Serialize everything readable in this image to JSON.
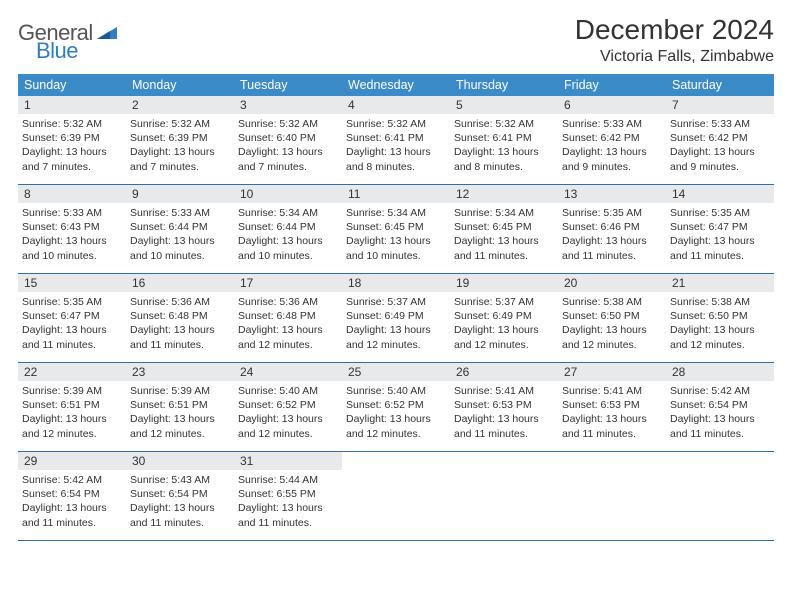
{
  "logo": {
    "general": "General",
    "blue": "Blue"
  },
  "header": {
    "month_title": "December 2024",
    "location": "Victoria Falls, Zimbabwe"
  },
  "style": {
    "header_bg": "#3b8bc8",
    "daynum_bg": "#e8e9ea",
    "row_border": "#2f6fa5",
    "page_bg": "#ffffff",
    "text_color": "#333333",
    "title_fontsize": 28,
    "location_fontsize": 16,
    "weekday_fontsize": 12.5,
    "body_fontsize": 10.5
  },
  "weekdays": [
    "Sunday",
    "Monday",
    "Tuesday",
    "Wednesday",
    "Thursday",
    "Friday",
    "Saturday"
  ],
  "days": [
    {
      "n": "1",
      "sr": "5:32 AM",
      "ss": "6:39 PM",
      "dl": "13 hours and 7 minutes."
    },
    {
      "n": "2",
      "sr": "5:32 AM",
      "ss": "6:39 PM",
      "dl": "13 hours and 7 minutes."
    },
    {
      "n": "3",
      "sr": "5:32 AM",
      "ss": "6:40 PM",
      "dl": "13 hours and 7 minutes."
    },
    {
      "n": "4",
      "sr": "5:32 AM",
      "ss": "6:41 PM",
      "dl": "13 hours and 8 minutes."
    },
    {
      "n": "5",
      "sr": "5:32 AM",
      "ss": "6:41 PM",
      "dl": "13 hours and 8 minutes."
    },
    {
      "n": "6",
      "sr": "5:33 AM",
      "ss": "6:42 PM",
      "dl": "13 hours and 9 minutes."
    },
    {
      "n": "7",
      "sr": "5:33 AM",
      "ss": "6:42 PM",
      "dl": "13 hours and 9 minutes."
    },
    {
      "n": "8",
      "sr": "5:33 AM",
      "ss": "6:43 PM",
      "dl": "13 hours and 10 minutes."
    },
    {
      "n": "9",
      "sr": "5:33 AM",
      "ss": "6:44 PM",
      "dl": "13 hours and 10 minutes."
    },
    {
      "n": "10",
      "sr": "5:34 AM",
      "ss": "6:44 PM",
      "dl": "13 hours and 10 minutes."
    },
    {
      "n": "11",
      "sr": "5:34 AM",
      "ss": "6:45 PM",
      "dl": "13 hours and 10 minutes."
    },
    {
      "n": "12",
      "sr": "5:34 AM",
      "ss": "6:45 PM",
      "dl": "13 hours and 11 minutes."
    },
    {
      "n": "13",
      "sr": "5:35 AM",
      "ss": "6:46 PM",
      "dl": "13 hours and 11 minutes."
    },
    {
      "n": "14",
      "sr": "5:35 AM",
      "ss": "6:47 PM",
      "dl": "13 hours and 11 minutes."
    },
    {
      "n": "15",
      "sr": "5:35 AM",
      "ss": "6:47 PM",
      "dl": "13 hours and 11 minutes."
    },
    {
      "n": "16",
      "sr": "5:36 AM",
      "ss": "6:48 PM",
      "dl": "13 hours and 11 minutes."
    },
    {
      "n": "17",
      "sr": "5:36 AM",
      "ss": "6:48 PM",
      "dl": "13 hours and 12 minutes."
    },
    {
      "n": "18",
      "sr": "5:37 AM",
      "ss": "6:49 PM",
      "dl": "13 hours and 12 minutes."
    },
    {
      "n": "19",
      "sr": "5:37 AM",
      "ss": "6:49 PM",
      "dl": "13 hours and 12 minutes."
    },
    {
      "n": "20",
      "sr": "5:38 AM",
      "ss": "6:50 PM",
      "dl": "13 hours and 12 minutes."
    },
    {
      "n": "21",
      "sr": "5:38 AM",
      "ss": "6:50 PM",
      "dl": "13 hours and 12 minutes."
    },
    {
      "n": "22",
      "sr": "5:39 AM",
      "ss": "6:51 PM",
      "dl": "13 hours and 12 minutes."
    },
    {
      "n": "23",
      "sr": "5:39 AM",
      "ss": "6:51 PM",
      "dl": "13 hours and 12 minutes."
    },
    {
      "n": "24",
      "sr": "5:40 AM",
      "ss": "6:52 PM",
      "dl": "13 hours and 12 minutes."
    },
    {
      "n": "25",
      "sr": "5:40 AM",
      "ss": "6:52 PM",
      "dl": "13 hours and 12 minutes."
    },
    {
      "n": "26",
      "sr": "5:41 AM",
      "ss": "6:53 PM",
      "dl": "13 hours and 11 minutes."
    },
    {
      "n": "27",
      "sr": "5:41 AM",
      "ss": "6:53 PM",
      "dl": "13 hours and 11 minutes."
    },
    {
      "n": "28",
      "sr": "5:42 AM",
      "ss": "6:54 PM",
      "dl": "13 hours and 11 minutes."
    },
    {
      "n": "29",
      "sr": "5:42 AM",
      "ss": "6:54 PM",
      "dl": "13 hours and 11 minutes."
    },
    {
      "n": "30",
      "sr": "5:43 AM",
      "ss": "6:54 PM",
      "dl": "13 hours and 11 minutes."
    },
    {
      "n": "31",
      "sr": "5:44 AM",
      "ss": "6:55 PM",
      "dl": "13 hours and 11 minutes."
    }
  ],
  "labels": {
    "sunrise": "Sunrise:",
    "sunset": "Sunset:",
    "daylight": "Daylight:"
  }
}
